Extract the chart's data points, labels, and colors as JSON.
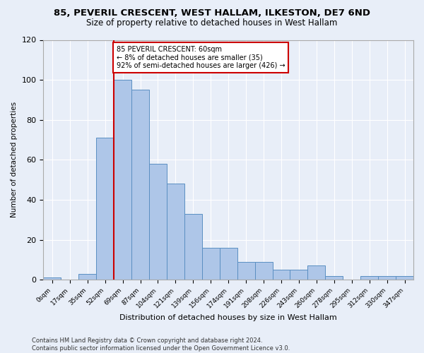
{
  "title": "85, PEVERIL CRESCENT, WEST HALLAM, ILKESTON, DE7 6ND",
  "subtitle": "Size of property relative to detached houses in West Hallam",
  "xlabel": "Distribution of detached houses by size in West Hallam",
  "ylabel": "Number of detached properties",
  "footer_line1": "Contains HM Land Registry data © Crown copyright and database right 2024.",
  "footer_line2": "Contains public sector information licensed under the Open Government Licence v3.0.",
  "bin_labels": [
    "0sqm",
    "17sqm",
    "35sqm",
    "52sqm",
    "69sqm",
    "87sqm",
    "104sqm",
    "121sqm",
    "139sqm",
    "156sqm",
    "174sqm",
    "191sqm",
    "208sqm",
    "226sqm",
    "243sqm",
    "260sqm",
    "278sqm",
    "295sqm",
    "312sqm",
    "330sqm",
    "347sqm"
  ],
  "bar_heights": [
    1,
    0,
    3,
    71,
    100,
    95,
    58,
    48,
    33,
    16,
    16,
    9,
    9,
    5,
    5,
    7,
    2,
    0,
    2,
    2,
    2
  ],
  "bar_color": "#aec6e8",
  "bar_edge_color": "#5a8fc2",
  "vline_x": 4.0,
  "annotation_label": "85 PEVERIL CRESCENT: 60sqm",
  "annotation_line1": "← 8% of detached houses are smaller (35)",
  "annotation_line2": "92% of semi-detached houses are larger (426) →",
  "vline_color": "#cc0000",
  "annotation_box_edge": "#cc0000",
  "ylim": [
    0,
    120
  ],
  "yticks": [
    0,
    20,
    40,
    60,
    80,
    100,
    120
  ],
  "background_color": "#e8eef8",
  "grid_color": "#ffffff",
  "title_fontsize": 9.5,
  "subtitle_fontsize": 8.5
}
